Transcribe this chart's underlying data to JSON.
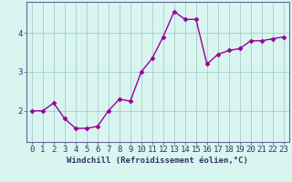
{
  "x": [
    0,
    1,
    2,
    3,
    4,
    5,
    6,
    7,
    8,
    9,
    10,
    11,
    12,
    13,
    14,
    15,
    16,
    17,
    18,
    19,
    20,
    21,
    22,
    23
  ],
  "y": [
    2.0,
    2.0,
    2.2,
    1.8,
    1.55,
    1.55,
    1.6,
    2.0,
    2.3,
    2.25,
    3.0,
    3.35,
    3.9,
    4.55,
    4.35,
    4.35,
    3.2,
    3.45,
    3.55,
    3.6,
    3.8,
    3.8,
    3.85,
    3.9
  ],
  "line_color": "#9b009b",
  "marker": "D",
  "marker_size": 2.5,
  "background_color": "#d8f5f0",
  "grid_color": "#aacccc",
  "xlabel": "Windchill (Refroidissement éolien,°C)",
  "xlabel_fontsize": 6.5,
  "ylabel_ticks": [
    2,
    3,
    4
  ],
  "xlim": [
    -0.5,
    23.5
  ],
  "ylim": [
    1.2,
    4.8
  ],
  "tick_fontsize": 6.5,
  "line_width": 1.0,
  "spine_color": "#666699",
  "tick_color": "#333366"
}
